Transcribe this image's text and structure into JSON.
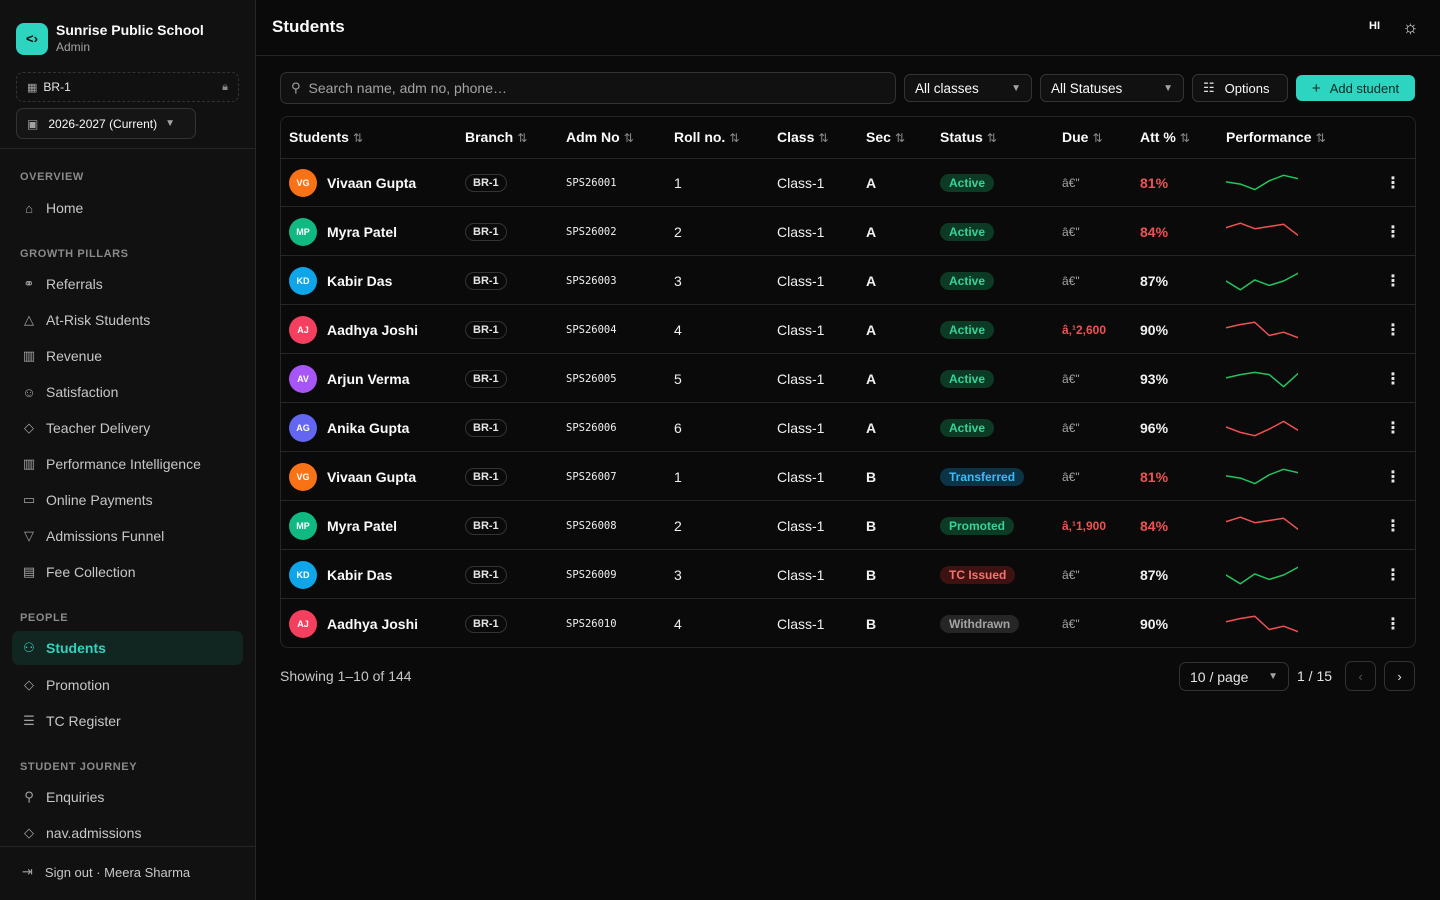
{
  "brand": {
    "logo": "<›",
    "name": "Sunrise Public School",
    "role": "Admin"
  },
  "branch_selector": {
    "value": "BR-1"
  },
  "year_selector": {
    "value": "2026-2027 (Current)"
  },
  "nav": {
    "overview": {
      "title": "OVERVIEW",
      "items": [
        {
          "label": "Home",
          "icon": "home-icon"
        }
      ]
    },
    "growth": {
      "title": "GROWTH PILLARS",
      "items": [
        {
          "label": "Referrals",
          "icon": "link-icon"
        },
        {
          "label": "At-Risk Students",
          "icon": "alert-triangle-icon"
        },
        {
          "label": "Revenue",
          "icon": "bar-chart-icon"
        },
        {
          "label": "Satisfaction",
          "icon": "smile-icon"
        },
        {
          "label": "Teacher Delivery",
          "icon": "graduation-cap-icon"
        },
        {
          "label": "Performance Intelligence",
          "icon": "bar-chart-icon"
        },
        {
          "label": "Online Payments",
          "icon": "credit-card-icon"
        },
        {
          "label": "Admissions Funnel",
          "icon": "funnel-icon"
        },
        {
          "label": "Fee Collection",
          "icon": "wallet-icon"
        }
      ]
    },
    "people": {
      "title": "PEOPLE",
      "items": [
        {
          "label": "Students",
          "icon": "users-icon"
        },
        {
          "label": "Promotion",
          "icon": "graduation-cap-icon"
        },
        {
          "label": "TC Register",
          "icon": "scroll-icon"
        }
      ]
    },
    "journey": {
      "title": "STUDENT JOURNEY",
      "items": [
        {
          "label": "Enquiries",
          "icon": "user-plus-icon"
        },
        {
          "label": "nav.admissions",
          "icon": "graduation-cap-icon"
        }
      ]
    }
  },
  "signout": {
    "label": "Sign out · Meera Sharma"
  },
  "header": {
    "title": "Students",
    "lang": "HI"
  },
  "toolbar": {
    "search_placeholder": "Search name, adm no, phone…",
    "class_filter": "All classes",
    "status_filter": "All Statuses",
    "options_label": "Options",
    "add_label": "Add student"
  },
  "table": {
    "columns": [
      "Students",
      "Branch",
      "Adm No",
      "Roll no.",
      "Class",
      "Sec",
      "Status",
      "Due",
      "Att %",
      "Performance"
    ],
    "rows": [
      {
        "initials": "VG",
        "avatar_color": "#f97316",
        "name": "Vivaan Gupta",
        "branch": "BR-1",
        "adm": "SPS26001",
        "roll": "1",
        "class": "Class-1",
        "sec": "A",
        "status": "Active",
        "due": "â€\"",
        "att": "81%",
        "att_low": true,
        "perf": [
          0.55,
          0.45,
          0.2,
          0.6,
          0.85,
          0.7
        ],
        "perf_up": true
      },
      {
        "initials": "MP",
        "avatar_color": "#10b981",
        "name": "Myra Patel",
        "branch": "BR-1",
        "adm": "SPS26002",
        "roll": "2",
        "class": "Class-1",
        "sec": "A",
        "status": "Active",
        "due": "â€\"",
        "att": "84%",
        "att_low": true,
        "perf": [
          0.7,
          0.9,
          0.65,
          0.75,
          0.85,
          0.35
        ],
        "perf_up": false
      },
      {
        "initials": "KD",
        "avatar_color": "#0ea5e9",
        "name": "Kabir Das",
        "branch": "BR-1",
        "adm": "SPS26003",
        "roll": "3",
        "class": "Class-1",
        "sec": "A",
        "status": "Active",
        "due": "â€\"",
        "att": "87%",
        "att_low": false,
        "perf": [
          0.5,
          0.1,
          0.55,
          0.3,
          0.5,
          0.85
        ],
        "perf_up": true
      },
      {
        "initials": "AJ",
        "avatar_color": "#f43f5e",
        "name": "Aadhya Joshi",
        "branch": "BR-1",
        "adm": "SPS26004",
        "roll": "4",
        "class": "Class-1",
        "sec": "A",
        "status": "Active",
        "due": "â‚¹2,600",
        "due_warn": true,
        "att": "90%",
        "att_low": false,
        "perf": [
          0.6,
          0.75,
          0.85,
          0.25,
          0.4,
          0.15
        ],
        "perf_up": false
      },
      {
        "initials": "AV",
        "avatar_color": "#a855f7",
        "name": "Arjun Verma",
        "branch": "BR-1",
        "adm": "SPS26005",
        "roll": "5",
        "class": "Class-1",
        "sec": "A",
        "status": "Active",
        "due": "â€\"",
        "att": "93%",
        "att_low": false,
        "perf": [
          0.55,
          0.7,
          0.8,
          0.7,
          0.15,
          0.75
        ],
        "perf_up": true
      },
      {
        "initials": "AG",
        "avatar_color": "#6366f1",
        "name": "Anika Gupta",
        "branch": "BR-1",
        "adm": "SPS26006",
        "roll": "6",
        "class": "Class-1",
        "sec": "A",
        "status": "Active",
        "due": "â€\"",
        "att": "96%",
        "att_low": false,
        "perf": [
          0.55,
          0.3,
          0.15,
          0.45,
          0.8,
          0.4
        ],
        "perf_up": false
      },
      {
        "initials": "VG",
        "avatar_color": "#f97316",
        "name": "Vivaan Gupta",
        "branch": "BR-1",
        "adm": "SPS26007",
        "roll": "1",
        "class": "Class-1",
        "sec": "B",
        "status": "Transferred",
        "due": "â€\"",
        "att": "81%",
        "att_low": true,
        "perf": [
          0.55,
          0.45,
          0.2,
          0.6,
          0.85,
          0.7
        ],
        "perf_up": true
      },
      {
        "initials": "MP",
        "avatar_color": "#10b981",
        "name": "Myra Patel",
        "branch": "BR-1",
        "adm": "SPS26008",
        "roll": "2",
        "class": "Class-1",
        "sec": "B",
        "status": "Promoted",
        "due": "â‚¹1,900",
        "due_warn": true,
        "att": "84%",
        "att_low": true,
        "perf": [
          0.7,
          0.9,
          0.65,
          0.75,
          0.85,
          0.35
        ],
        "perf_up": false
      },
      {
        "initials": "KD",
        "avatar_color": "#0ea5e9",
        "name": "Kabir Das",
        "branch": "BR-1",
        "adm": "SPS26009",
        "roll": "3",
        "class": "Class-1",
        "sec": "B",
        "status": "TC Issued",
        "due": "â€\"",
        "att": "87%",
        "att_low": false,
        "perf": [
          0.5,
          0.1,
          0.55,
          0.3,
          0.5,
          0.85
        ],
        "perf_up": true
      },
      {
        "initials": "AJ",
        "avatar_color": "#f43f5e",
        "name": "Aadhya Joshi",
        "branch": "BR-1",
        "adm": "SPS26010",
        "roll": "4",
        "class": "Class-1",
        "sec": "B",
        "status": "Withdrawn",
        "due": "â€\"",
        "att": "90%",
        "att_low": false,
        "perf": [
          0.6,
          0.75,
          0.85,
          0.25,
          0.4,
          0.15
        ],
        "perf_up": false
      }
    ]
  },
  "status_colors": {
    "Active": {
      "bg": "#0d3a24",
      "fg": "#34d399"
    },
    "Transferred": {
      "bg": "#0c3346",
      "fg": "#38bdf8"
    },
    "Promoted": {
      "bg": "#0d3a24",
      "fg": "#34d399"
    },
    "TC Issued": {
      "bg": "#3f1212",
      "fg": "#f87171"
    },
    "Withdrawn": {
      "bg": "#262626",
      "fg": "#a3a3a3"
    }
  },
  "colors": {
    "accent": "#2dd4bf",
    "spark_up": "#22c55e",
    "spark_down": "#f05252",
    "danger": "#f05252"
  },
  "pagination": {
    "showing": "Showing 1–10 of 144",
    "per_page": "10 / page",
    "page": "1 / 15"
  }
}
